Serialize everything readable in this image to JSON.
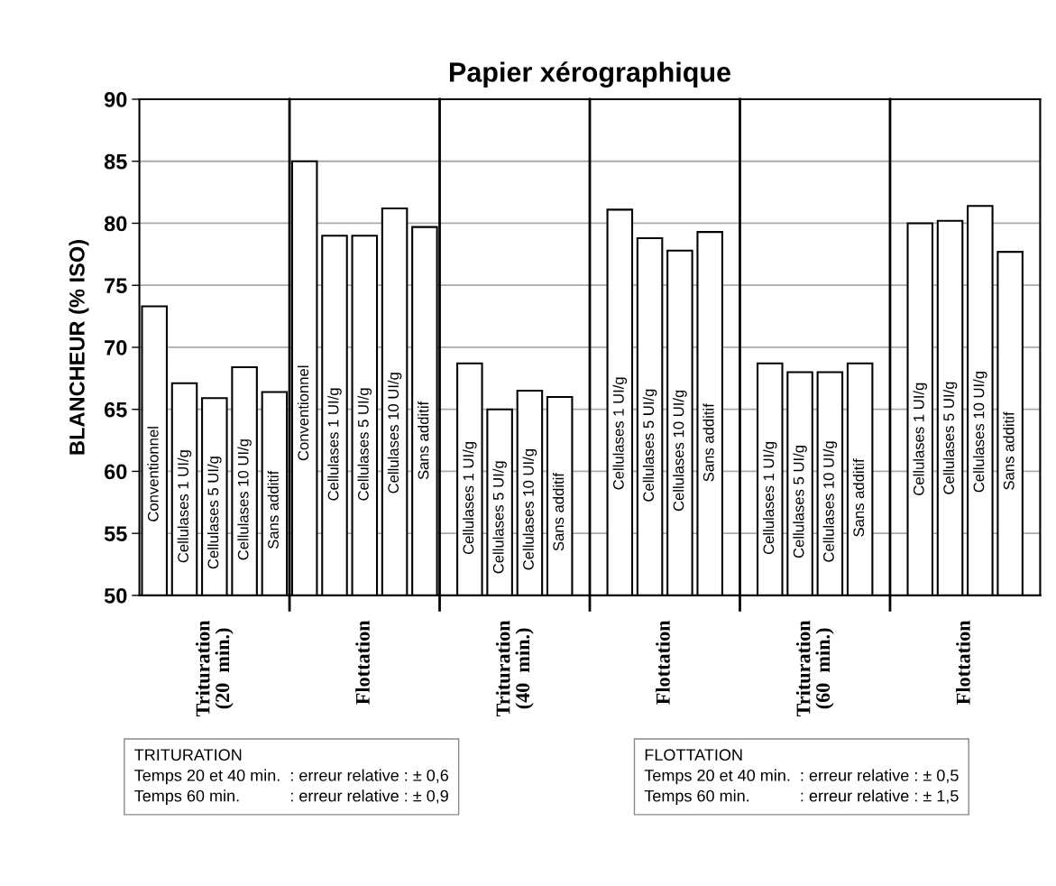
{
  "chart_data": {
    "type": "bar",
    "title": "Papier xérographique",
    "ylabel": "BLANCHEUR (% ISO)",
    "categories": [
      "Trituration\n(20  min.)",
      "Flottation",
      "Trituration\n(40  min.)",
      "Flottation",
      "Trituration\n(60  min.)",
      "Flottation"
    ],
    "series": [
      {
        "name": "Conventionnel",
        "color": "#ffffff",
        "values": [
          73.3,
          85.0,
          null,
          null,
          null,
          null
        ]
      },
      {
        "name": "Cellulases 1 UI/g",
        "color": "#ffffff",
        "values": [
          67.1,
          79.0,
          68.7,
          81.1,
          68.7,
          80.0
        ]
      },
      {
        "name": "Cellulases 5 UI/g",
        "color": "#ffffff",
        "values": [
          65.9,
          79.0,
          65.0,
          78.8,
          68.0,
          80.2
        ]
      },
      {
        "name": "Cellulases 10 UI/g",
        "color": "#ffffff",
        "values": [
          68.4,
          81.2,
          66.5,
          77.8,
          68.0,
          81.4
        ]
      },
      {
        "name": "Sans additif",
        "color": "#ffffff",
        "values": [
          66.4,
          79.7,
          66.0,
          79.3,
          68.7,
          77.7
        ]
      }
    ],
    "ylim": [
      50,
      90
    ],
    "yticks": [
      50,
      55,
      60,
      65,
      70,
      75,
      80,
      85,
      90
    ],
    "grid": "y",
    "legend": false,
    "annotations": [
      "TRITURATION\nTemps 20 et 40 min.  : erreur relative : ± 0,6\nTemps 60 min.           : erreur relative : ± 0,9",
      "FLOTTATION\nTemps 20 et 40 min.  : erreur relative : ± 0,5\nTemps 60 min.           : erreur relative : ± 1,5"
    ]
  }
}
